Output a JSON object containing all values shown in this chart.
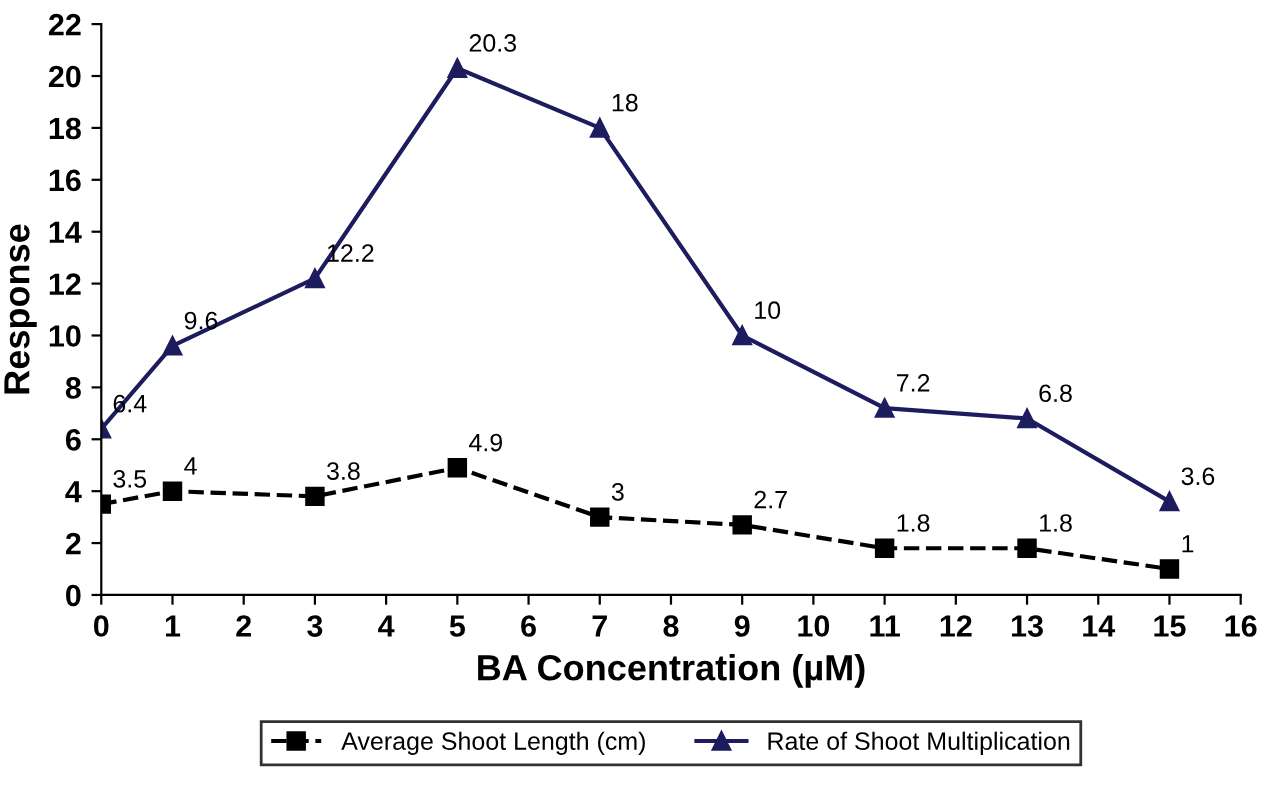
{
  "chart_data": {
    "type": "line",
    "xlabel": "BA Concentration (µM)",
    "ylabel": "Response",
    "x": [
      0,
      1,
      3,
      5,
      7,
      9,
      11,
      13,
      15
    ],
    "series": [
      {
        "name": "Average Shoot Length (cm)",
        "color": "#000000",
        "marker": "square",
        "line_style": "dashed",
        "values": [
          3.5,
          4,
          3.8,
          4.9,
          3,
          2.7,
          1.8,
          1.8,
          1
        ]
      },
      {
        "name": "Rate of Shoot Multiplication",
        "color": "#1c1c5e",
        "marker": "triangle",
        "line_style": "solid",
        "values": [
          6.4,
          9.6,
          12.2,
          20.3,
          18,
          10,
          7.2,
          6.8,
          3.6
        ]
      }
    ],
    "xlim": [
      0,
      16
    ],
    "xticks": [
      0,
      1,
      2,
      3,
      4,
      5,
      6,
      7,
      8,
      9,
      10,
      11,
      12,
      13,
      14,
      15,
      16
    ],
    "ylim": [
      0,
      22
    ],
    "yticks": [
      0,
      2,
      4,
      6,
      8,
      10,
      12,
      14,
      16,
      18,
      20,
      22
    ],
    "data_labels": true,
    "legend": "bottom",
    "grid": false
  }
}
